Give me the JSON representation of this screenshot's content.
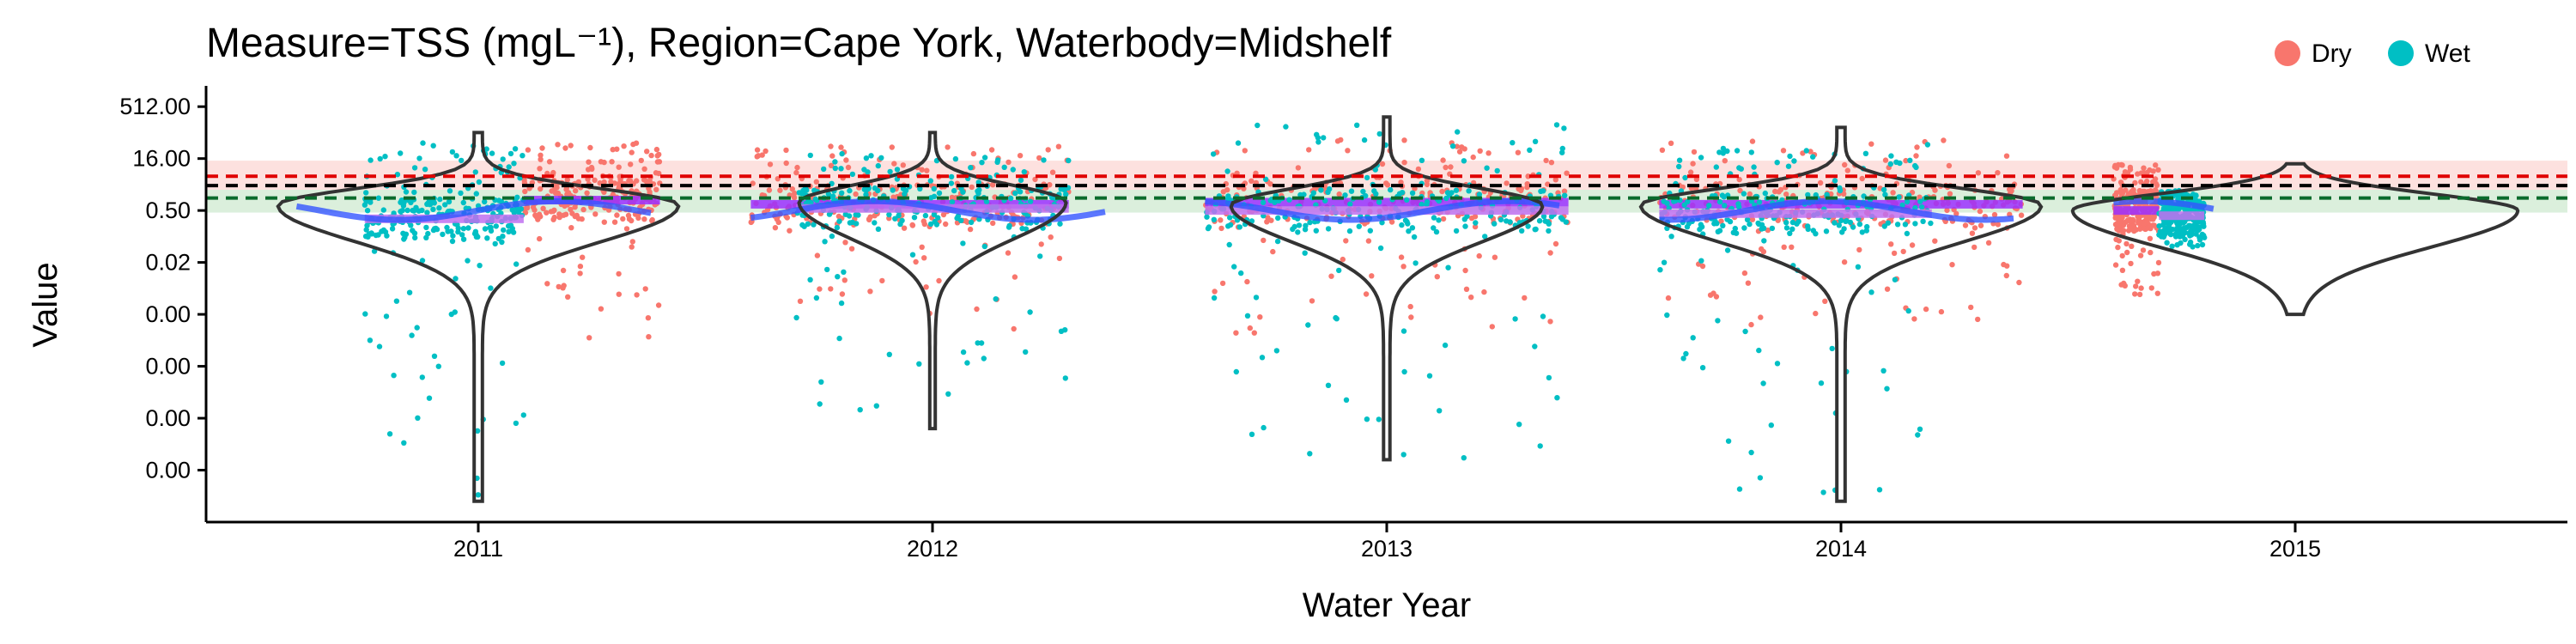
{
  "chart_data": {
    "type": "scatter",
    "title": "Measure=TSS (mgL⁻¹), Region=Cape York, Waterbody=Midshelf",
    "xlabel": "Water Year",
    "ylabel": "Value",
    "x_ticks": [
      "2011",
      "2012",
      "2013",
      "2014",
      "2015"
    ],
    "y_ticks": [
      "512.00",
      "16.00",
      "0.50",
      "0.02",
      "0.00",
      "0.00",
      "0.00",
      "0.00"
    ],
    "y_scale": "log2",
    "y_tick_exponents": [
      9,
      4,
      -1,
      -6,
      -11,
      -16,
      -21,
      -26
    ],
    "ylim_log2": [
      -31,
      11
    ],
    "legend": {
      "position": "top-right",
      "entries": [
        {
          "name": "Dry",
          "color": "#F8766D"
        },
        {
          "name": "Wet",
          "color": "#00BFC4"
        }
      ]
    },
    "guidelines": {
      "red_log2": 2.3,
      "black_log2": 1.4,
      "green_log2": 0.2,
      "band_red_log2": [
        1.0,
        3.8
      ],
      "band_green_log2": [
        -1.2,
        1.0
      ]
    },
    "series": [
      {
        "name": "Dry",
        "color": "#F8766D",
        "years": [
          {
            "year": "2011",
            "median_log2": 0.0,
            "low_log2": -14,
            "high_log2": 5.5,
            "span": [
              0.1,
              0.4
            ]
          },
          {
            "year": "2012",
            "median_log2": -0.4,
            "low_log2": -12.5,
            "high_log2": 5.3,
            "span": [
              -0.4,
              0.3
            ]
          },
          {
            "year": "2013",
            "median_log2": -0.2,
            "low_log2": -13,
            "high_log2": 5.8,
            "span": [
              -0.4,
              0.4
            ]
          },
          {
            "year": "2014",
            "median_log2": -0.4,
            "low_log2": -12,
            "high_log2": 5.8,
            "span": [
              -0.4,
              0.4
            ]
          },
          {
            "year": "2015",
            "median_log2": -1.0,
            "low_log2": -9.5,
            "high_log2": 3.5,
            "span": [
              -0.4,
              -0.3
            ]
          }
        ]
      },
      {
        "name": "Wet",
        "color": "#00BFC4",
        "years": [
          {
            "year": "2011",
            "median_log2": -1.8,
            "low_log2": -28.5,
            "high_log2": 5.5,
            "span": [
              -0.25,
              0.1
            ]
          },
          {
            "year": "2012",
            "median_log2": -0.8,
            "low_log2": -21,
            "high_log2": 4.5,
            "span": [
              -0.3,
              0.3
            ]
          },
          {
            "year": "2013",
            "median_log2": -1.0,
            "low_log2": -25,
            "high_log2": 7.5,
            "span": [
              -0.4,
              0.4
            ]
          },
          {
            "year": "2014",
            "median_log2": -1.3,
            "low_log2": -28.5,
            "high_log2": 5.5,
            "span": [
              -0.4,
              0.2
            ]
          },
          {
            "year": "2015",
            "median_log2": -1.5,
            "low_log2": -4.5,
            "high_log2": 1.0,
            "span": [
              -0.3,
              -0.2
            ]
          }
        ]
      }
    ],
    "violins": [
      {
        "year": "2011",
        "top_log2": 6.5,
        "bottom_log2": -29,
        "peak_log2": -0.5,
        "width": 0.45
      },
      {
        "year": "2012",
        "top_log2": 6.5,
        "bottom_log2": -22,
        "peak_log2": -0.2,
        "width": 0.3
      },
      {
        "year": "2013",
        "top_log2": 8.0,
        "bottom_log2": -25,
        "peak_log2": -0.5,
        "width": 0.35
      },
      {
        "year": "2014",
        "top_log2": 7.0,
        "bottom_log2": -29,
        "peak_log2": -0.5,
        "width": 0.45
      },
      {
        "year": "2015",
        "top_log2": 3.5,
        "bottom_log2": -11,
        "peak_log2": -1.0,
        "width": 0.5
      }
    ]
  }
}
